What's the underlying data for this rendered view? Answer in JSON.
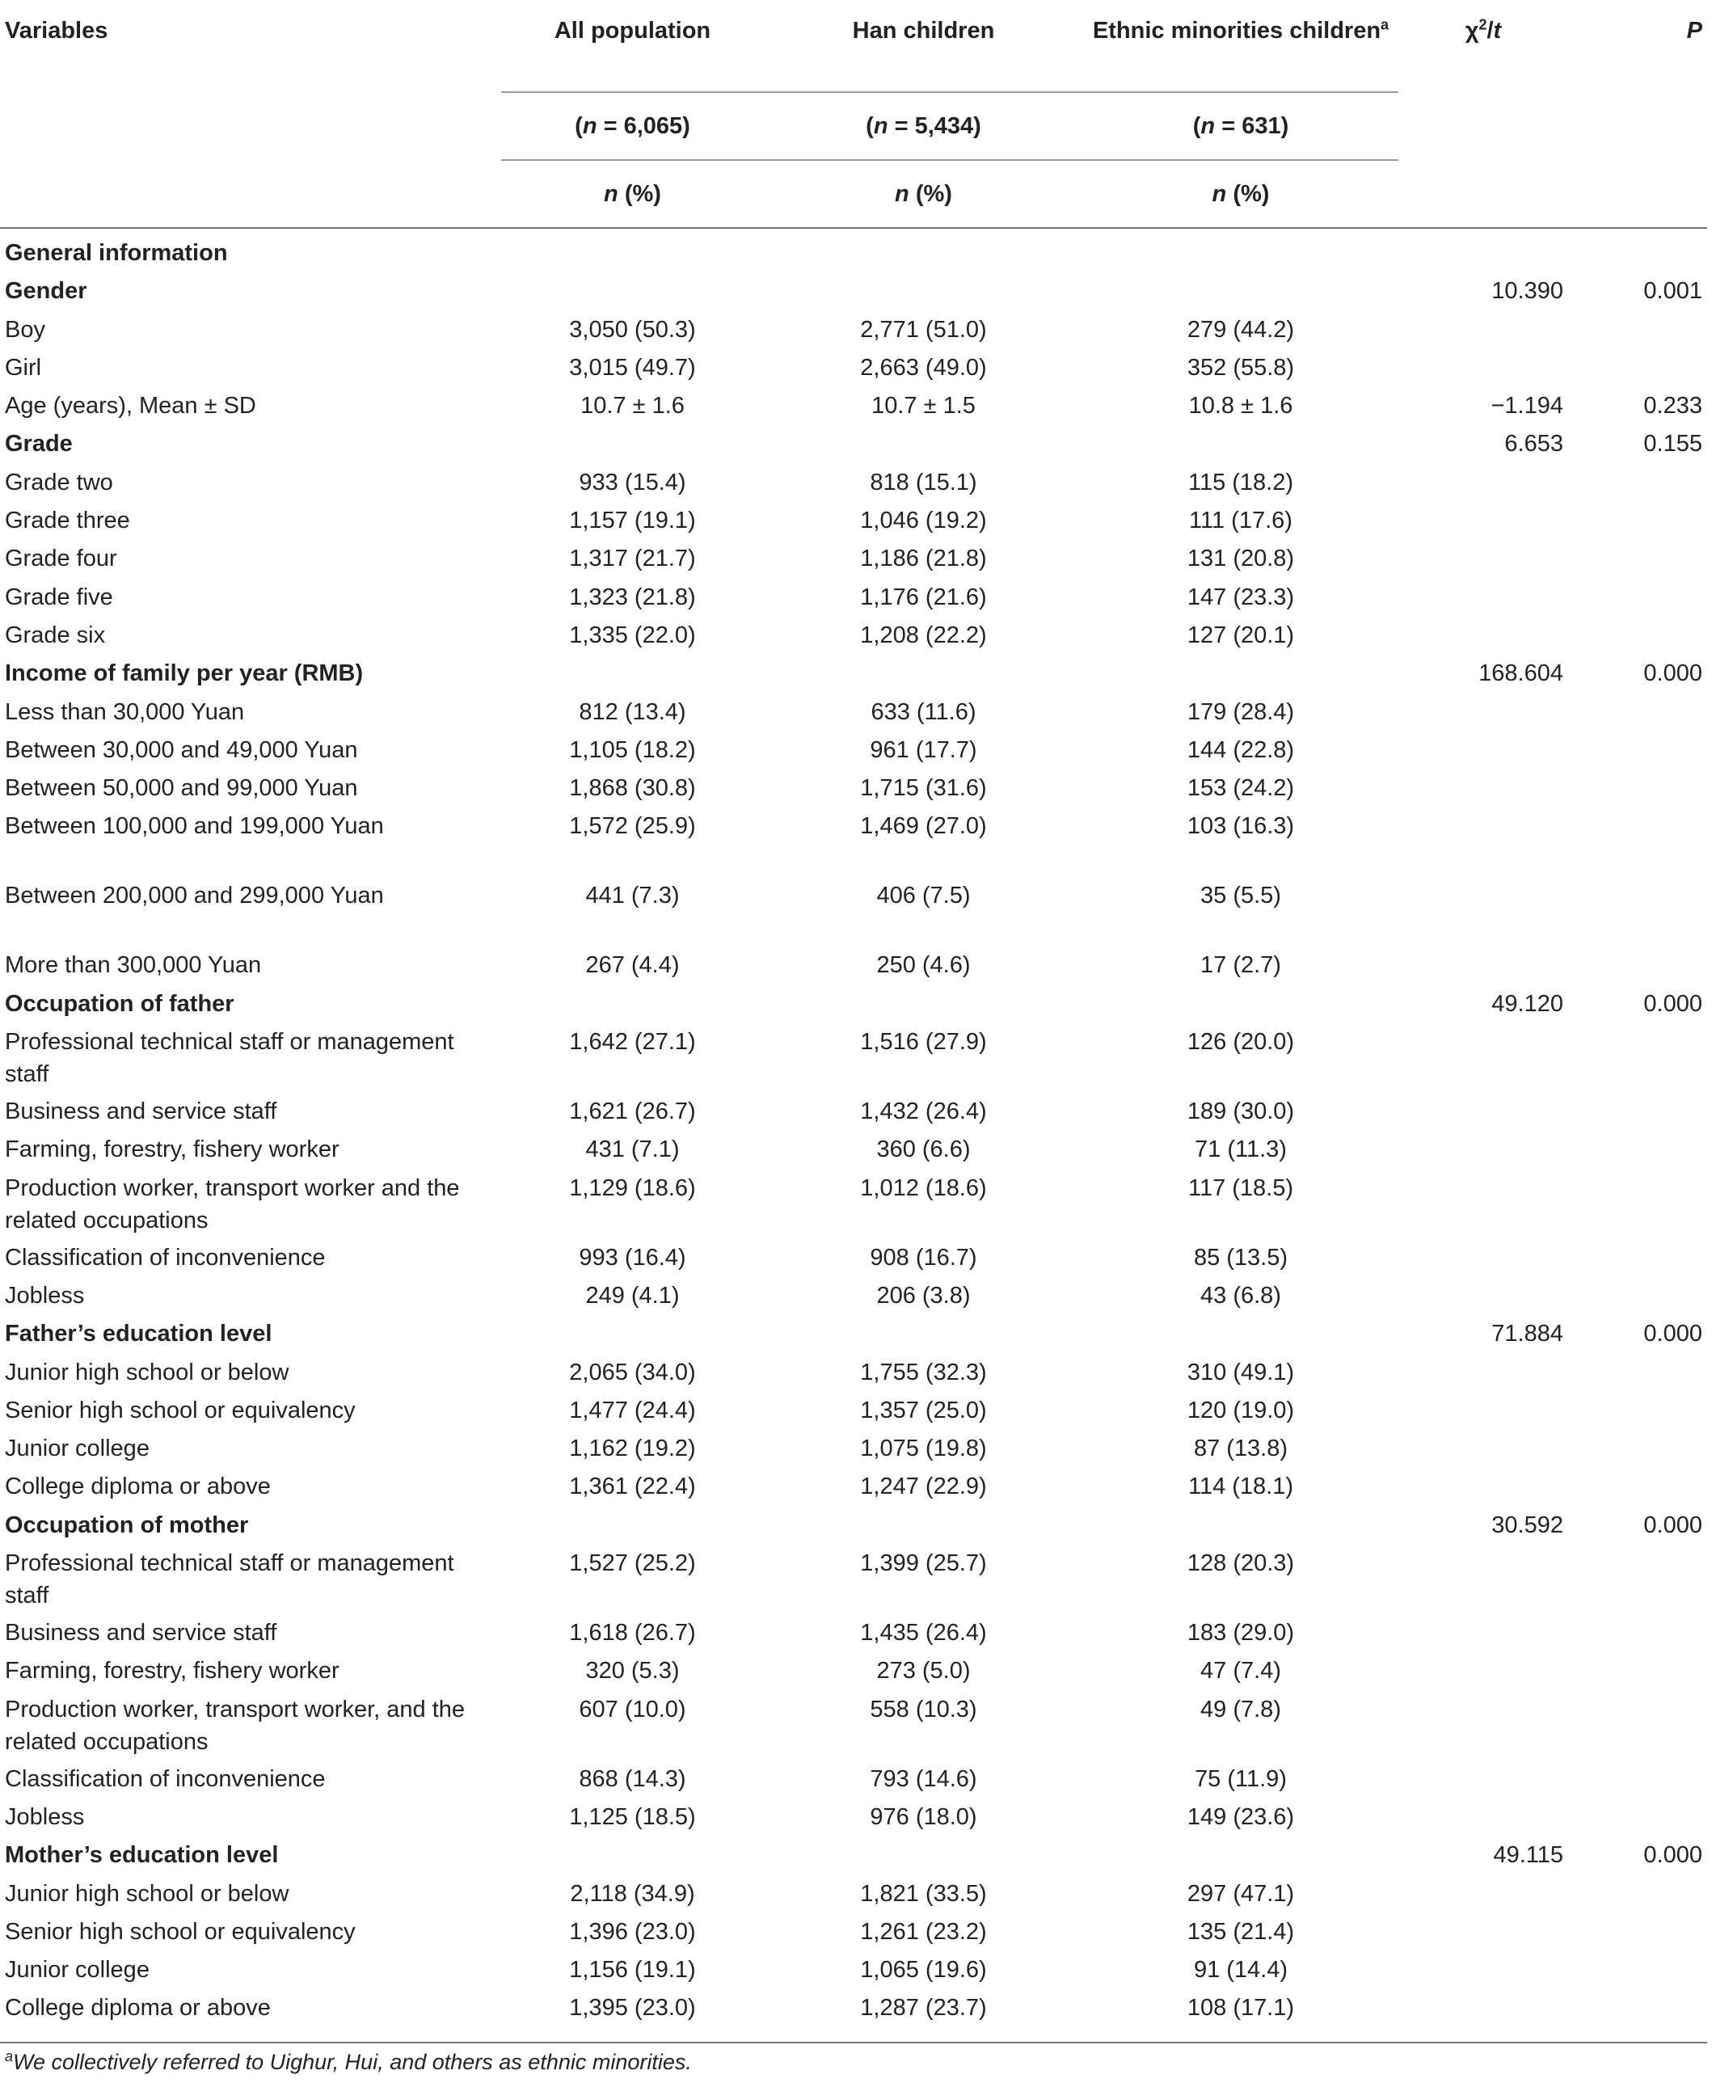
{
  "header": {
    "variables": "Variables",
    "all": "All population",
    "han": "Han children",
    "ethnic": "Ethnic minorities children",
    "ethnic_sup": "a",
    "stat_chi": "χ",
    "stat_sup": "2",
    "stat_slash": "/",
    "stat_t": "t",
    "p": "P",
    "n_label": "n",
    "n_all": " = 6,065)",
    "n_han": " = 5,434)",
    "n_eth": " = 631)",
    "pct": " (%)"
  },
  "rows": [
    {
      "label": "General information",
      "bold": true,
      "all": "",
      "han": "",
      "eth": "",
      "stat": "",
      "p": ""
    },
    {
      "label": "Gender",
      "bold": true,
      "all": "",
      "han": "",
      "eth": "",
      "stat": "10.390",
      "p": "0.001"
    },
    {
      "label": "Boy",
      "all": "3,050 (50.3)",
      "han": "2,771 (51.0)",
      "eth": "279 (44.2)",
      "stat": "",
      "p": ""
    },
    {
      "label": "Girl",
      "all": "3,015 (49.7)",
      "han": "2,663 (49.0)",
      "eth": "352 (55.8)",
      "stat": "",
      "p": ""
    },
    {
      "label": "Age (years), Mean ± SD",
      "all": "10.7 ± 1.6",
      "han": "10.7 ± 1.5",
      "eth": "10.8 ± 1.6",
      "stat": "−1.194",
      "p": "0.233"
    },
    {
      "label": "Grade",
      "bold": true,
      "all": "",
      "han": "",
      "eth": "",
      "stat": "6.653",
      "p": "0.155"
    },
    {
      "label": "Grade two",
      "all": "933 (15.4)",
      "han": "818 (15.1)",
      "eth": "115 (18.2)",
      "stat": "",
      "p": ""
    },
    {
      "label": "Grade three",
      "all": "1,157 (19.1)",
      "han": "1,046 (19.2)",
      "eth": "111 (17.6)",
      "stat": "",
      "p": ""
    },
    {
      "label": "Grade four",
      "all": "1,317 (21.7)",
      "han": "1,186 (21.8)",
      "eth": "131 (20.8)",
      "stat": "",
      "p": ""
    },
    {
      "label": "Grade five",
      "all": "1,323 (21.8)",
      "han": "1,176 (21.6)",
      "eth": "147 (23.3)",
      "stat": "",
      "p": ""
    },
    {
      "label": "Grade six",
      "all": "1,335 (22.0)",
      "han": "1,208 (22.2)",
      "eth": "127 (20.1)",
      "stat": "",
      "p": ""
    },
    {
      "label": "Income of family per year (RMB)",
      "bold": true,
      "all": "",
      "han": "",
      "eth": "",
      "stat": "168.604",
      "p": "0.000"
    },
    {
      "label": "Less than 30,000 Yuan",
      "all": "812 (13.4)",
      "han": "633 (11.6)",
      "eth": "179 (28.4)",
      "stat": "",
      "p": ""
    },
    {
      "label": "Between 30,000 and 49,000 Yuan",
      "all": "1,105 (18.2)",
      "han": "961 (17.7)",
      "eth": "144 (22.8)",
      "stat": "",
      "p": ""
    },
    {
      "label": "Between 50,000 and 99,000 Yuan",
      "all": "1,868 (30.8)",
      "han": "1,715 (31.6)",
      "eth": "153 (24.2)",
      "stat": "",
      "p": ""
    },
    {
      "label": "Between 100,000 and 199,000 Yuan",
      "tall": true,
      "all": "1,572 (25.9)",
      "han": "1,469 (27.0)",
      "eth": "103 (16.3)",
      "stat": "",
      "p": ""
    },
    {
      "label": "Between 200,000 and 299,000 Yuan",
      "tall": true,
      "all": "441 (7.3)",
      "han": "406 (7.5)",
      "eth": "35 (5.5)",
      "stat": "",
      "p": ""
    },
    {
      "label": "More than 300,000 Yuan",
      "all": "267 (4.4)",
      "han": "250 (4.6)",
      "eth": "17 (2.7)",
      "stat": "",
      "p": ""
    },
    {
      "label": "Occupation of father",
      "bold": true,
      "all": "",
      "han": "",
      "eth": "",
      "stat": "49.120",
      "p": "0.000"
    },
    {
      "label": "Professional technical staff or management staff",
      "tall": true,
      "all": "1,642 (27.1)",
      "han": "1,516 (27.9)",
      "eth": "126 (20.0)",
      "stat": "",
      "p": ""
    },
    {
      "label": "Business and service staff",
      "all": "1,621 (26.7)",
      "han": "1,432 (26.4)",
      "eth": "189 (30.0)",
      "stat": "",
      "p": ""
    },
    {
      "label": "Farming, forestry, fishery worker",
      "all": "431 (7.1)",
      "han": "360 (6.6)",
      "eth": "71 (11.3)",
      "stat": "",
      "p": ""
    },
    {
      "label": "Production worker, transport worker and the related occupations",
      "tall": true,
      "all": "1,129 (18.6)",
      "han": "1,012 (18.6)",
      "eth": "117 (18.5)",
      "stat": "",
      "p": ""
    },
    {
      "label": "Classification of inconvenience",
      "all": "993 (16.4)",
      "han": "908 (16.7)",
      "eth": "85 (13.5)",
      "stat": "",
      "p": ""
    },
    {
      "label": "Jobless",
      "all": "249 (4.1)",
      "han": "206 (3.8)",
      "eth": "43 (6.8)",
      "stat": "",
      "p": ""
    },
    {
      "label": "Father’s education level",
      "bold": true,
      "all": "",
      "han": "",
      "eth": "",
      "stat": "71.884",
      "p": "0.000"
    },
    {
      "label": "Junior high school or below",
      "all": "2,065 (34.0)",
      "han": "1,755 (32.3)",
      "eth": "310 (49.1)",
      "stat": "",
      "p": ""
    },
    {
      "label": "Senior high school or equivalency",
      "all": "1,477 (24.4)",
      "han": "1,357 (25.0)",
      "eth": "120 (19.0)",
      "stat": "",
      "p": ""
    },
    {
      "label": "Junior college",
      "all": "1,162 (19.2)",
      "han": "1,075 (19.8)",
      "eth": "87 (13.8)",
      "stat": "",
      "p": ""
    },
    {
      "label": "College diploma or above",
      "all": "1,361 (22.4)",
      "han": "1,247 (22.9)",
      "eth": "114 (18.1)",
      "stat": "",
      "p": ""
    },
    {
      "label": "Occupation of mother",
      "bold": true,
      "all": "",
      "han": "",
      "eth": "",
      "stat": "30.592",
      "p": "0.000"
    },
    {
      "label": "Professional technical staff or management staff",
      "tall": true,
      "all": "1,527 (25.2)",
      "han": "1,399 (25.7)",
      "eth": "128 (20.3)",
      "stat": "",
      "p": ""
    },
    {
      "label": "Business and service staff",
      "all": "1,618 (26.7)",
      "han": "1,435 (26.4)",
      "eth": "183 (29.0)",
      "stat": "",
      "p": ""
    },
    {
      "label": "Farming, forestry, fishery worker",
      "all": "320 (5.3)",
      "han": "273 (5.0)",
      "eth": "47 (7.4)",
      "stat": "",
      "p": ""
    },
    {
      "label": "Production worker, transport worker, and the related occupations",
      "tall": true,
      "all": "607 (10.0)",
      "han": "558 (10.3)",
      "eth": "49 (7.8)",
      "stat": "",
      "p": ""
    },
    {
      "label": "Classification of inconvenience",
      "all": "868 (14.3)",
      "han": "793 (14.6)",
      "eth": "75 (11.9)",
      "stat": "",
      "p": ""
    },
    {
      "label": "Jobless",
      "all": "1,125 (18.5)",
      "han": "976 (18.0)",
      "eth": "149 (23.6)",
      "stat": "",
      "p": ""
    },
    {
      "label": "Mother’s education level",
      "bold": true,
      "all": "",
      "han": "",
      "eth": "",
      "stat": "49.115",
      "p": "0.000"
    },
    {
      "label": "Junior high school or below",
      "all": "2,118 (34.9)",
      "han": "1,821 (33.5)",
      "eth": "297 (47.1)",
      "stat": "",
      "p": ""
    },
    {
      "label": "Senior high school or equivalency",
      "all": "1,396 (23.0)",
      "han": "1,261 (23.2)",
      "eth": "135 (21.4)",
      "stat": "",
      "p": ""
    },
    {
      "label": "Junior college",
      "all": "1,156 (19.1)",
      "han": "1,065 (19.6)",
      "eth": "91 (14.4)",
      "stat": "",
      "p": ""
    },
    {
      "label": "College diploma or above",
      "all": "1,395 (23.0)",
      "han": "1,287 (23.7)",
      "eth": "108 (17.1)",
      "stat": "",
      "p": ""
    }
  ],
  "footnote": {
    "sup": "a",
    "text": "We collectively referred to Uighur, Hui, and others as ethnic minorities."
  }
}
